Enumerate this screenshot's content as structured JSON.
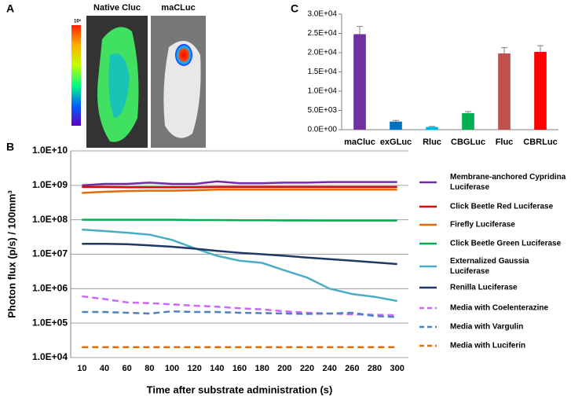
{
  "panels": {
    "a": "A",
    "b": "B",
    "c": "C"
  },
  "image_labels": [
    "Native Cluc",
    "maCLuc"
  ],
  "colorbar_label": "10⁶",
  "chart_data": [
    {
      "type": "line",
      "log_scale_y": true,
      "grid": true,
      "y_label": "Photon flux (p/s) / 100mm³",
      "x_label": "Time after substrate administration (s)",
      "categories": [
        "10",
        "40",
        "60",
        "80",
        "100",
        "120",
        "140",
        "160",
        "180",
        "200",
        "220",
        "240",
        "260",
        "280",
        "300"
      ],
      "ylim": [
        10000,
        10000000000
      ],
      "yticks": [
        {
          "value": 10000,
          "label": "1.0E+04"
        },
        {
          "value": 100000,
          "label": "1.0E+05"
        },
        {
          "value": 1000000,
          "label": "1.0E+06"
        },
        {
          "value": 10000000,
          "label": "1.0E+07"
        },
        {
          "value": 100000000,
          "label": "1.0E+08"
        },
        {
          "value": 1000000000,
          "label": "1.0E+09"
        },
        {
          "value": 10000000000,
          "label": "1.0E+10"
        }
      ],
      "series": [
        {
          "name": "Membrane-anchored Cypridina Luciferase",
          "color": "#7030a0",
          "dashed": false,
          "values": [
            1000000000,
            1100000000,
            1100000000,
            1200000000,
            1100000000,
            1100000000,
            1300000000,
            1150000000,
            1150000000,
            1200000000,
            1200000000,
            1250000000,
            1250000000,
            1250000000,
            1250000000
          ]
        },
        {
          "name": "Click Beetle Red Luciferase",
          "color": "#e00000",
          "dashed": false,
          "values": [
            900000000,
            900000000,
            880000000,
            880000000,
            880000000,
            880000000,
            900000000,
            900000000,
            900000000,
            900000000,
            900000000,
            900000000,
            900000000,
            900000000,
            900000000
          ]
        },
        {
          "name": "Firefly Luciferase",
          "color": "#e36c09",
          "dashed": false,
          "values": [
            600000000,
            650000000,
            680000000,
            700000000,
            700000000,
            720000000,
            750000000,
            750000000,
            750000000,
            750000000,
            750000000,
            750000000,
            750000000,
            750000000,
            750000000
          ]
        },
        {
          "name": "Click Beetle Green Luciferase",
          "color": "#00b050",
          "dashed": false,
          "values": [
            100000000,
            100000000,
            100000000,
            100000000,
            100000000,
            98000000,
            98000000,
            97000000,
            97000000,
            96000000,
            96000000,
            95000000,
            95000000,
            95000000,
            95000000
          ]
        },
        {
          "name": "Externalized Gaussia Luciferase",
          "color": "#4bacc6",
          "dashed": false,
          "values": [
            52000000,
            47000000,
            42000000,
            37000000,
            26000000,
            15000000,
            9000000,
            6500000,
            5600000,
            3400000,
            2100000,
            1000000,
            700000,
            580000,
            440000
          ]
        },
        {
          "name": "Renilla Luciferase",
          "color": "#1f3864",
          "dashed": false,
          "values": [
            20000000,
            20000000,
            19500000,
            18000000,
            16500000,
            14500000,
            12500000,
            11000000,
            10000000,
            9000000,
            8000000,
            7200000,
            6500000,
            5800000,
            5200000
          ]
        },
        {
          "name": "Media with Coelenterazine",
          "color": "#cc66ff",
          "dashed": true,
          "values": [
            600000,
            500000,
            400000,
            380000,
            350000,
            320000,
            300000,
            270000,
            250000,
            220000,
            200000,
            190000,
            180000,
            175000,
            170000
          ]
        },
        {
          "name": "Media with Vargulin",
          "color": "#4f81bd",
          "dashed": true,
          "values": [
            210000,
            210000,
            200000,
            190000,
            220000,
            210000,
            210000,
            200000,
            195000,
            190000,
            185000,
            190000,
            200000,
            160000,
            150000
          ]
        },
        {
          "name": "Media with Luciferin",
          "color": "#e36c09",
          "dashed": true,
          "values": [
            20000,
            20000,
            20000,
            20000,
            20000,
            20000,
            20000,
            20000,
            20000,
            20000,
            20000,
            20000,
            20000,
            20000,
            20000
          ]
        }
      ]
    },
    {
      "type": "bar",
      "grid": false,
      "categories": [
        "maCluc",
        "exGLuc",
        "Rluc",
        "CBGLuc",
        "Fluc",
        "CBRLuc"
      ],
      "values": [
        24800,
        2100,
        700,
        4300,
        19800,
        20200
      ],
      "errors": [
        2000,
        300,
        150,
        400,
        1500,
        1600
      ],
      "colors": [
        "#7030a0",
        "#0070c0",
        "#00b0f0",
        "#00b050",
        "#c0504d",
        "#ff0000"
      ],
      "ylim": [
        0,
        30000
      ],
      "yticks": [
        {
          "value": 0,
          "label": "0.0E+00"
        },
        {
          "value": 5000,
          "label": "5.0E+03"
        },
        {
          "value": 10000,
          "label": "1.0E+04"
        },
        {
          "value": 15000,
          "label": "1.5E+04"
        },
        {
          "value": 20000,
          "label": "2.0E+04"
        },
        {
          "value": 25000,
          "label": "2.5E+04"
        },
        {
          "value": 30000,
          "label": "3.0E+04"
        }
      ]
    }
  ]
}
